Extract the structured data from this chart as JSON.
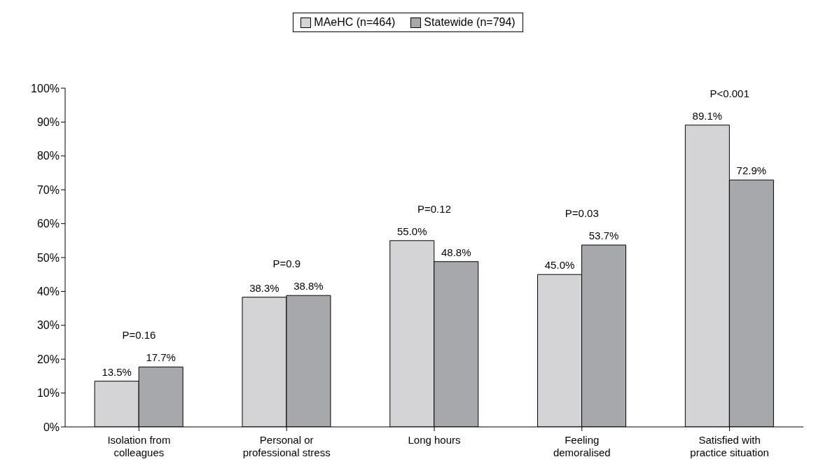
{
  "chart_data": {
    "type": "bar",
    "categories": [
      "Isolation from\ncolleagues",
      "Personal or\nprofessional stress",
      "Long hours",
      "Feeling\ndemoralised",
      "Satisfied with\npractice situation"
    ],
    "series": [
      {
        "name": "MAeHC (n=464)",
        "color": "#d4d4d6",
        "values": [
          13.5,
          38.3,
          55.0,
          45.0,
          89.1
        ],
        "value_labels": [
          "13.5%",
          "38.3%",
          "55.0%",
          "45.0%",
          "89.1%"
        ]
      },
      {
        "name": "Statewide (n=794)",
        "color": "#a7a8ab",
        "values": [
          17.7,
          38.8,
          48.8,
          53.7,
          72.9
        ],
        "value_labels": [
          "17.7%",
          "38.8%",
          "48.8%",
          "53.7%",
          "72.9%"
        ]
      }
    ],
    "ylim": [
      0,
      100
    ],
    "yticks": [
      {
        "value": 0,
        "label": "0%"
      },
      {
        "value": 10,
        "label": "10%"
      },
      {
        "value": 20,
        "label": "20%"
      },
      {
        "value": 30,
        "label": "30%"
      },
      {
        "value": 40,
        "label": "40%"
      },
      {
        "value": 50,
        "label": "50%"
      },
      {
        "value": 60,
        "label": "60%"
      },
      {
        "value": 70,
        "label": "70%"
      },
      {
        "value": 80,
        "label": "80%"
      },
      {
        "value": 90,
        "label": "90%"
      },
      {
        "value": 100,
        "label": "100%"
      }
    ],
    "annotations": [
      "P=0.16",
      "P=0.9",
      "P=0.12",
      "P=0.03",
      "P<0.001"
    ],
    "grid": false,
    "legend": "top"
  }
}
